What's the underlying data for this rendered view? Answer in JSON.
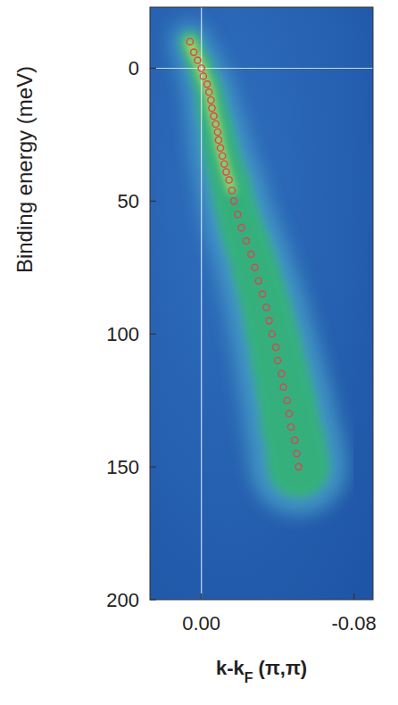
{
  "chart_data": {
    "type": "scatter",
    "y_label": "Binding energy (meV)",
    "x_label": "k-kF (π,π)",
    "x": [
      0.006,
      0.004,
      0.002,
      0.0,
      -0.001,
      -0.003,
      -0.004,
      -0.005,
      -0.0055,
      -0.0065,
      -0.0075,
      -0.0085,
      -0.009,
      -0.01,
      -0.011,
      -0.012,
      -0.013,
      -0.0145,
      -0.016,
      -0.017,
      -0.019,
      -0.021,
      -0.0235,
      -0.026,
      -0.028,
      -0.03,
      -0.032,
      -0.034,
      -0.0355,
      -0.037,
      -0.039,
      -0.04,
      -0.042,
      -0.043,
      -0.045,
      -0.046,
      -0.047,
      -0.049,
      -0.05,
      -0.051
    ],
    "values": [
      -10,
      -6,
      -3,
      0,
      3,
      6,
      9,
      12,
      15,
      18,
      21,
      24,
      27,
      30,
      33,
      36,
      39,
      42,
      46,
      50,
      55,
      60,
      65,
      70,
      75,
      80,
      85,
      90,
      95,
      100,
      105,
      110,
      115,
      120,
      125,
      130,
      135,
      140,
      145,
      150
    ],
    "color": "#d8454f",
    "marker": "open-circle",
    "xlim": [
      0.027,
      -0.09
    ],
    "xticks": [
      {
        "value": 0,
        "label": "0.00"
      },
      {
        "value": -0.08,
        "label": "-0.08"
      }
    ],
    "ylim": [
      -23,
      200
    ],
    "yticks": [
      0,
      50,
      100,
      150,
      200
    ],
    "grid": false
  }
}
